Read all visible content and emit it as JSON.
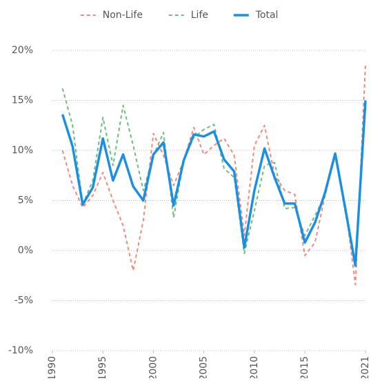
{
  "chart_data": {
    "type": "line",
    "x": [
      1991,
      1992,
      1993,
      1994,
      1995,
      1996,
      1997,
      1998,
      1999,
      2000,
      2001,
      2002,
      2003,
      2004,
      2005,
      2006,
      2007,
      2008,
      2009,
      2010,
      2011,
      2012,
      2013,
      2014,
      2015,
      2016,
      2017,
      2018,
      2019,
      2020,
      2021
    ],
    "series": [
      {
        "name": "Non-Life",
        "color": "#f08a78",
        "dash": true,
        "values": [
          10.0,
          6.5,
          4.3,
          5.5,
          7.8,
          5.0,
          2.5,
          -2.0,
          3.0,
          11.7,
          9.5,
          6.5,
          9.0,
          12.3,
          9.6,
          10.5,
          11.2,
          9.5,
          1.5,
          10.5,
          12.5,
          7.5,
          6.0,
          5.6,
          -0.5,
          0.8,
          5.5,
          9.5,
          4.5,
          -3.4,
          18.7
        ]
      },
      {
        "name": "Life",
        "color": "#6cbf7a",
        "dash": true,
        "values": [
          16.2,
          12.5,
          4.6,
          7.0,
          13.3,
          8.5,
          14.5,
          10.5,
          6.0,
          9.5,
          11.8,
          3.3,
          9.0,
          11.3,
          12.1,
          12.6,
          8.2,
          7.3,
          -0.3,
          4.0,
          8.5,
          8.8,
          4.2,
          4.3,
          1.5,
          3.5,
          5.5,
          9.8,
          3.8,
          -1.2,
          14.8
        ]
      },
      {
        "name": "Total",
        "color": "#1a8fe3",
        "dash": false,
        "values": [
          13.6,
          10.4,
          4.6,
          6.3,
          11.2,
          7.0,
          9.6,
          6.4,
          5.0,
          9.6,
          10.8,
          4.5,
          9.0,
          11.6,
          11.4,
          11.9,
          9.1,
          7.9,
          0.3,
          6.0,
          10.2,
          7.3,
          4.7,
          4.7,
          0.8,
          2.8,
          5.8,
          9.7,
          4.2,
          -1.5,
          15.0
        ]
      }
    ],
    "xlim": [
      1990,
      2021
    ],
    "xticks": [
      1990,
      1995,
      2000,
      2005,
      2010,
      2015,
      2021
    ],
    "ylim": [
      -10,
      20
    ],
    "yticks": [
      {
        "value": -10,
        "label": "-10%"
      },
      {
        "value": -5,
        "label": "-5%"
      },
      {
        "value": 0,
        "label": "0%"
      },
      {
        "value": 5,
        "label": "5%"
      },
      {
        "value": 10,
        "label": "10%"
      },
      {
        "value": 15,
        "label": "15%"
      },
      {
        "value": 20,
        "label": "20%"
      }
    ],
    "grid": true,
    "legend": "top"
  }
}
